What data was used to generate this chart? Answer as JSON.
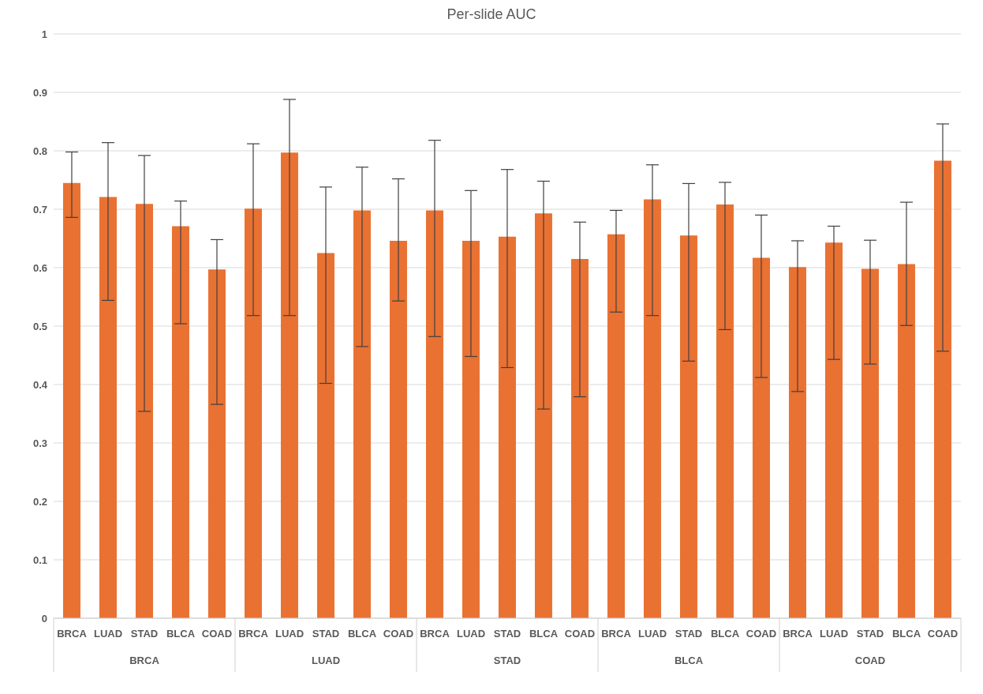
{
  "chart_data": {
    "type": "bar",
    "title": "Per-slide AUC",
    "categories": [
      "BRCA",
      "LUAD",
      "STAD",
      "BLCA",
      "COAD",
      "BRCA",
      "LUAD",
      "STAD",
      "BLCA",
      "COAD",
      "BRCA",
      "LUAD",
      "STAD",
      "BLCA",
      "COAD",
      "BRCA",
      "LUAD",
      "STAD",
      "BLCA",
      "COAD",
      "BRCA",
      "LUAD",
      "STAD",
      "BLCA",
      "COAD"
    ],
    "annotations": [
      "BRCA",
      "LUAD",
      "STAD",
      "BLCA",
      "COAD"
    ],
    "values": [
      0.745,
      0.721,
      0.709,
      0.671,
      0.597,
      0.701,
      0.797,
      0.625,
      0.698,
      0.646,
      0.698,
      0.646,
      0.653,
      0.693,
      0.615,
      0.657,
      0.717,
      0.655,
      0.708,
      0.617,
      0.601,
      0.643,
      0.598,
      0.606,
      0.783
    ],
    "errors": [
      [
        0.686,
        0.798
      ],
      [
        0.544,
        0.814
      ],
      [
        0.354,
        0.792
      ],
      [
        0.504,
        0.714
      ],
      [
        0.366,
        0.648
      ],
      [
        0.518,
        0.812
      ],
      [
        0.518,
        0.888
      ],
      [
        0.402,
        0.738
      ],
      [
        0.465,
        0.772
      ],
      [
        0.543,
        0.752
      ],
      [
        0.482,
        0.818
      ],
      [
        0.448,
        0.732
      ],
      [
        0.429,
        0.768
      ],
      [
        0.358,
        0.748
      ],
      [
        0.379,
        0.678
      ],
      [
        0.524,
        0.698
      ],
      [
        0.518,
        0.776
      ],
      [
        0.44,
        0.744
      ],
      [
        0.494,
        0.746
      ],
      [
        0.412,
        0.69
      ],
      [
        0.388,
        0.646
      ],
      [
        0.443,
        0.671
      ],
      [
        0.435,
        0.647
      ],
      [
        0.501,
        0.712
      ],
      [
        0.457,
        0.846
      ]
    ],
    "color": "#e97132",
    "ylim": [
      0,
      1
    ],
    "yticks": [
      0,
      0.1,
      0.2,
      0.3,
      0.4,
      0.5,
      0.6,
      0.7,
      0.8,
      0.9,
      1
    ],
    "grid": "y"
  }
}
